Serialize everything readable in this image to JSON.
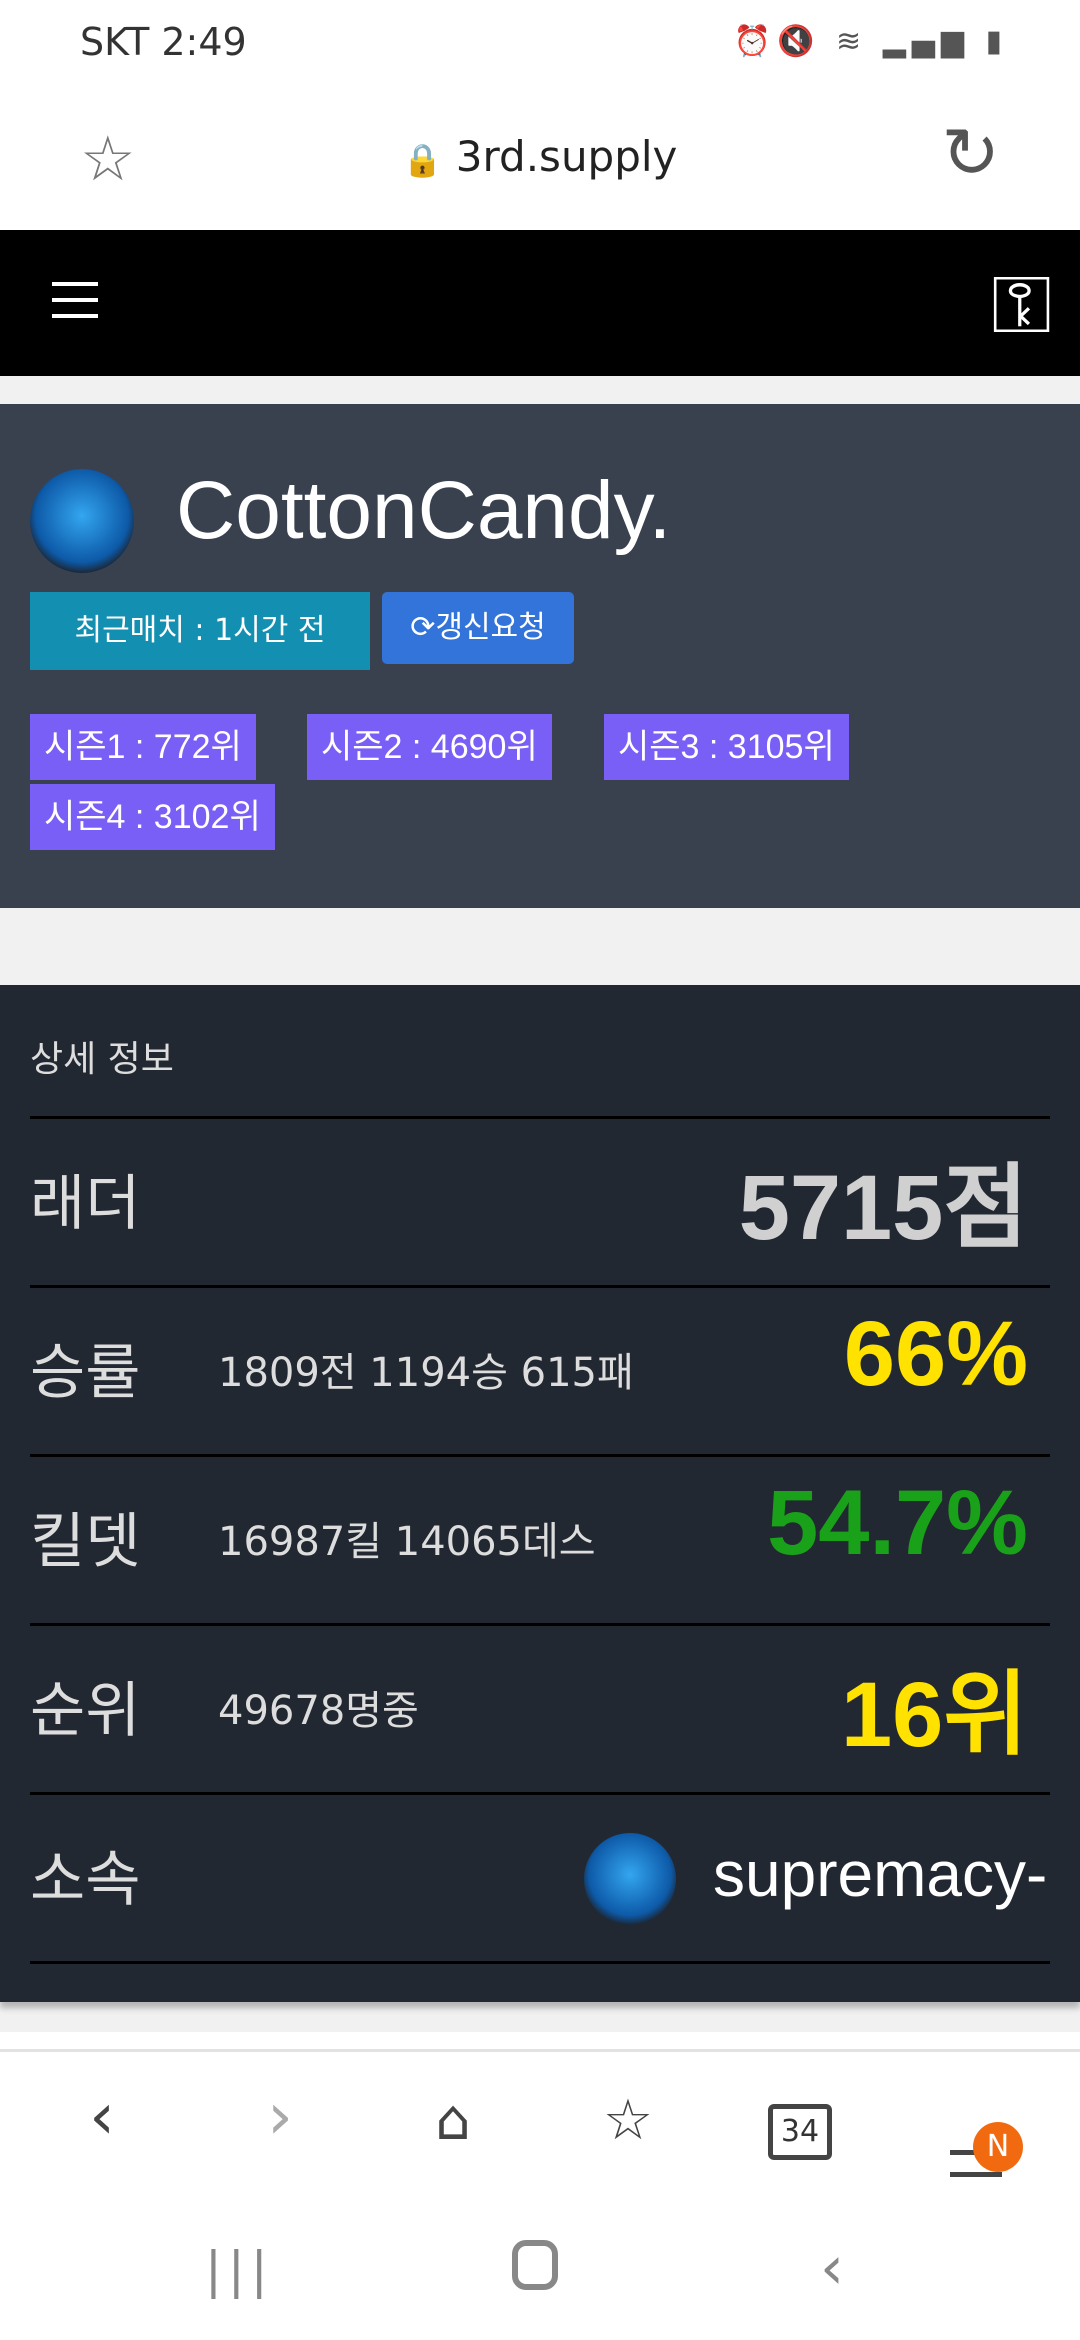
{
  "status_bar": {
    "carrier_time": "SKT 2:49",
    "icons": [
      "alarm-icon",
      "mute-icon",
      "wifi-icon",
      "signal-icon",
      "battery-icon"
    ]
  },
  "browser": {
    "url": "3rd.supply",
    "tab_count": "34",
    "menu_badge": "N"
  },
  "profile": {
    "name": "CottonCandy.",
    "recent_match": "최근매치 : 1시간 전",
    "refresh_label": "갱신요청",
    "seasons": [
      "시즌1 : 772위",
      "시즌2 : 4690위",
      "시즌3 : 3105위",
      "시즌4 : 3102위"
    ]
  },
  "details": {
    "title": "상세 정보",
    "rows": [
      {
        "label": "래더",
        "sub": "",
        "value": "5715점",
        "color": "#d0d0d0"
      },
      {
        "label": "승률",
        "sub": "1809전 1194승 615패",
        "value": "66%",
        "color": "#ffe200"
      },
      {
        "label": "킬뎃",
        "sub": "16987킬 14065데스",
        "value": "54.7%",
        "color": "#1aa11a"
      },
      {
        "label": "순위",
        "sub": "49678명중",
        "value": "16위",
        "color": "#ffe200"
      }
    ],
    "clan_label": "소속",
    "clan_name": "supremacy-"
  },
  "colors": {
    "profile_bg": "#39414f",
    "details_bg": "#222831",
    "season_badge": "#7a5ff7",
    "recent_badge": "#138fb1",
    "refresh_button": "#3374db"
  }
}
